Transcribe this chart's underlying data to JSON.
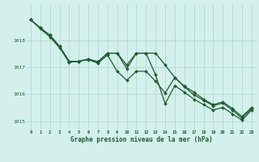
{
  "title": "Graphe pression niveau de la mer (hPa)",
  "background_color": "#d4f0ec",
  "grid_color": "#aad4cc",
  "line_color": "#1e5c30",
  "x_ticks": [
    0,
    1,
    2,
    3,
    4,
    5,
    6,
    7,
    8,
    9,
    10,
    11,
    12,
    13,
    14,
    15,
    16,
    17,
    18,
    19,
    20,
    21,
    22,
    23
  ],
  "ylim": [
    1014.7,
    1019.3
  ],
  "y_ticks": [
    1015,
    1016,
    1017,
    1018
  ],
  "series1": [
    1018.75,
    1018.45,
    1018.18,
    1017.77,
    1017.22,
    1017.22,
    1017.3,
    1017.2,
    1017.52,
    1017.52,
    1016.95,
    1017.52,
    1017.52,
    1017.52,
    1017.08,
    1016.62,
    1016.3,
    1016.08,
    1015.82,
    1015.62,
    1015.72,
    1015.48,
    1015.18,
    1015.52
  ],
  "series2": [
    1018.75,
    1018.42,
    1018.12,
    1017.72,
    1017.18,
    1017.22,
    1017.28,
    1017.15,
    1017.45,
    1016.85,
    1016.52,
    1016.85,
    1016.85,
    1016.48,
    1016.05,
    1016.62,
    1016.28,
    1015.98,
    1015.78,
    1015.58,
    1015.68,
    1015.42,
    1015.12,
    1015.48
  ],
  "series3": [
    1018.75,
    1018.45,
    1018.18,
    1017.77,
    1017.22,
    1017.22,
    1017.3,
    1017.2,
    1017.52,
    1017.52,
    1017.08,
    1017.52,
    1017.52,
    1016.72,
    1015.65,
    1016.32,
    1016.08,
    1015.82,
    1015.62,
    1015.42,
    1015.52,
    1015.28,
    1015.05,
    1015.42
  ]
}
